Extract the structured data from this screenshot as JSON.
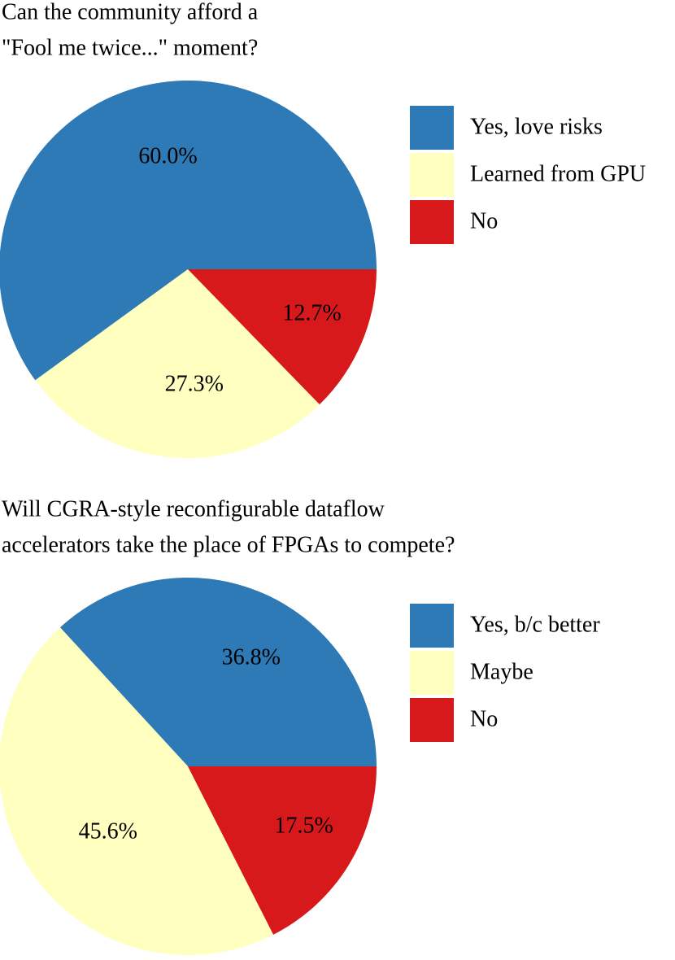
{
  "chart_data": [
    {
      "type": "pie",
      "title": [
        "Can the community afford a",
        "\"Fool me twice...\" moment?"
      ],
      "categories": [
        "Yes, love risks",
        "Learned from GPU",
        "No"
      ],
      "values": [
        60.0,
        27.3,
        12.7
      ],
      "value_labels": [
        "60.0%",
        "27.3%",
        "12.7%"
      ],
      "colors": [
        "#2e7ab6",
        "#ffffc0",
        "#d7191c"
      ]
    },
    {
      "type": "pie",
      "title": [
        "Will CGRA-style reconfigurable dataflow",
        "accelerators take the place of FPGAs to compete?"
      ],
      "categories": [
        "Yes, b/c better",
        "Maybe",
        "No"
      ],
      "values": [
        36.8,
        45.6,
        17.5
      ],
      "value_labels": [
        "36.8%",
        "45.6%",
        "17.5%"
      ],
      "colors": [
        "#2e7ab6",
        "#ffffc0",
        "#d7191c"
      ]
    }
  ]
}
